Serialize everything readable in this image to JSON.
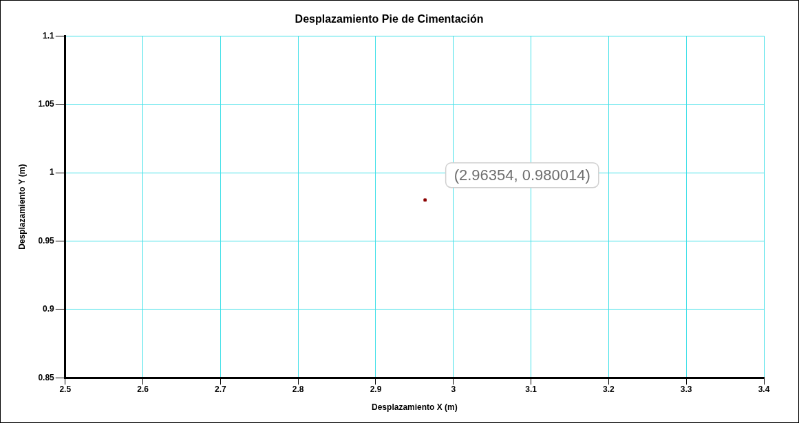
{
  "chart_data": {
    "type": "scatter",
    "title": "Desplazamiento Pie de Cimentación",
    "xlabel": "Desplazamiento X (m)",
    "ylabel": "Desplazamiento Y (m)",
    "x": [
      2.96354
    ],
    "values": [
      0.980014
    ],
    "color": "#8b0000",
    "marker": "square",
    "xlim": [
      2.5,
      3.4
    ],
    "xticks": [
      2.5,
      2.6,
      2.7,
      2.8,
      2.9,
      3,
      3.1,
      3.2,
      3.3,
      3.4
    ],
    "ylim": [
      0.85,
      1.1
    ],
    "yticks": [
      0.85,
      0.9,
      0.95,
      1,
      1.05,
      1.1
    ],
    "grid": true,
    "legend": false,
    "annotations": [
      {
        "text": "(2.96354, 0.980014)",
        "x": 2.96354,
        "y": 0.980014
      }
    ]
  }
}
